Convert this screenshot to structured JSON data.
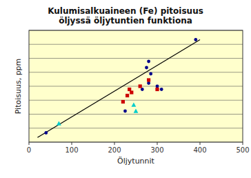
{
  "chart_data": {
    "type": "scatter",
    "title": "Kulumisalkuaineen (Fe) pitoisuus\nöljyssä öljytuntien funktiona",
    "x_label": "Öljytunnit",
    "y_label": "Pitoisuus, ppm",
    "xlim": [
      0,
      500
    ],
    "ylim": [
      0,
      36
    ],
    "xticks": [
      0,
      100,
      200,
      300,
      400,
      500
    ],
    "yticks": [
      0,
      4.5,
      9,
      13.5,
      18,
      22.5,
      27,
      31.5,
      36
    ],
    "grid": true,
    "tick_labels": "x",
    "series": [
      {
        "type": "line",
        "color": "#000000",
        "line_style": "solid",
        "x": [
          20,
          400
        ],
        "values": [
          1.5,
          33
        ]
      },
      {
        "type": "scatter",
        "color": "#00008B",
        "marker": "circle",
        "x": [
          40,
          225,
          265,
          280,
          285,
          300,
          310,
          275,
          280,
          390
        ],
        "values": [
          3,
          10,
          17,
          19,
          22,
          18,
          17,
          24,
          26,
          33
        ]
      },
      {
        "type": "scatter",
        "color": "#cc0000",
        "marker": "square",
        "x": [
          220,
          230,
          235,
          240,
          260,
          280,
          300
        ],
        "values": [
          13,
          15,
          17,
          16,
          18,
          20,
          17
        ]
      },
      {
        "type": "scatter",
        "color": "#00cccc",
        "marker": "triangle",
        "x": [
          70,
          245,
          250
        ],
        "values": [
          6,
          12,
          10
        ]
      }
    ]
  }
}
